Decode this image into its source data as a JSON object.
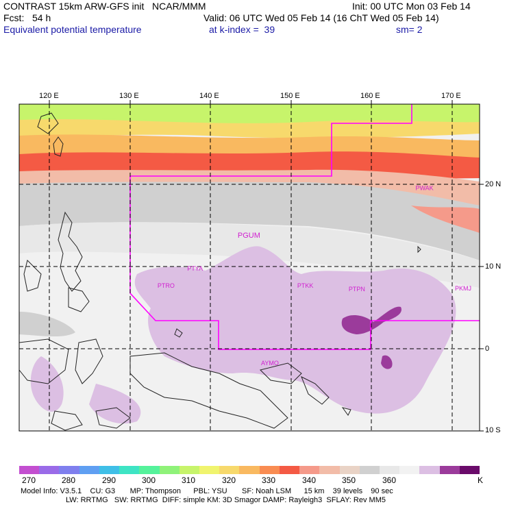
{
  "header": {
    "line1_left": "CONTRAST 15km ARW-GFS init   NCAR/MMM",
    "line1_right": "Init: 00 UTC Mon 03 Feb 14",
    "line2_left": "Fcst:   54 h",
    "line2_right": "Valid: 06 UTC Wed 05 Feb 14 (16 ChT Wed 05 Feb 14)",
    "line3_left": "Equivalent potential temperature",
    "line3_mid": "at k-index =  39",
    "line3_right": "sm= 2"
  },
  "axes": {
    "lon_labels": [
      "120 E",
      "130 E",
      "140 E",
      "150 E",
      "160 E",
      "170 E"
    ],
    "lat_labels": [
      "20 N",
      "10 N",
      "0",
      "10 S"
    ]
  },
  "stations": [
    {
      "id": "PGUM",
      "lon": 144.8,
      "lat": 13.5
    },
    {
      "id": "PTYA",
      "lon": 138.1,
      "lat": 9.5
    },
    {
      "id": "PTRO",
      "lon": 134.5,
      "lat": 7.4
    },
    {
      "id": "PTKK",
      "lon": 151.8,
      "lat": 7.4
    },
    {
      "id": "PTPN",
      "lon": 158.2,
      "lat": 7.0
    },
    {
      "id": "PKMJ",
      "lon": 171.4,
      "lat": 7.1
    },
    {
      "id": "PWAK",
      "lon": 166.6,
      "lat": 19.3
    },
    {
      "id": "AYMO",
      "lon": 147.4,
      "lat": -2.0
    }
  ],
  "legend": {
    "colors": [
      "#c34fd0",
      "#9a6be8",
      "#7f7fee",
      "#5f9ff2",
      "#3fbfe7",
      "#3ee4c4",
      "#55f29b",
      "#8ff279",
      "#c7f46b",
      "#f0f46e",
      "#f7d96c",
      "#f9b960",
      "#f98c52",
      "#f45a44",
      "#f59a8a",
      "#f2bca8",
      "#e9d3c6",
      "#d0d0d0",
      "#e8e8e8",
      "#f2f2f2",
      "#dcbfe3",
      "#9b3b9b",
      "#6a0b6a"
    ],
    "labels": [
      "270",
      "280",
      "290",
      "300",
      "310",
      "320",
      "330",
      "340",
      "350",
      "360",
      "K"
    ]
  },
  "footer": {
    "line1": "Model Info: V3.5.1    CU: G3       MP: Thompson      PBL: YSU       SF: Noah LSM      15 km    39 levels    90 sec",
    "line2": "LW: RRTMG   SW: RRTMG  DIFF: simple KM: 3D Smagor DAMP: Rayleigh3  SFLAY: Rev MM5"
  }
}
